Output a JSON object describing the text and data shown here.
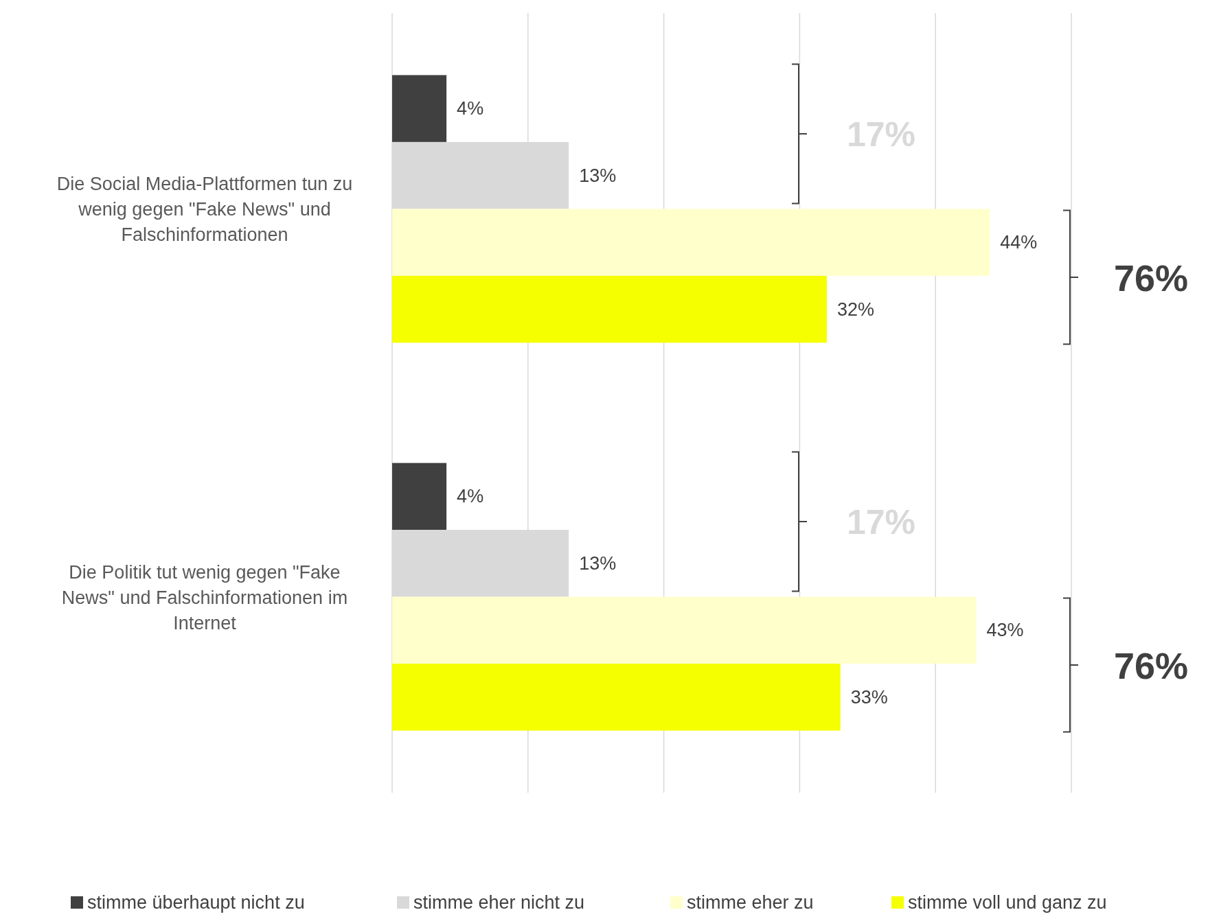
{
  "chart_data": {
    "type": "bar",
    "orientation": "horizontal",
    "categories": [
      "Die Social Media-Plattformen tun zu wenig gegen \"Fake News\" und Falschinformationen",
      "Die Politik tut wenig gegen \"Fake News\" und Falschinformationen im Internet"
    ],
    "series": [
      {
        "name": "stimme überhaupt nicht zu",
        "color": "#404040",
        "values": [
          4,
          4
        ],
        "value_labels": [
          "4%",
          "4%"
        ]
      },
      {
        "name": "stimme eher nicht zu",
        "color": "#d9d9d9",
        "values": [
          13,
          13
        ],
        "value_labels": [
          "13%",
          "13%"
        ]
      },
      {
        "name": "stimme eher zu",
        "color": "#ffffcc",
        "values": [
          44,
          43
        ],
        "value_labels": [
          "44%",
          "43%"
        ]
      },
      {
        "name": "stimme voll und ganz zu",
        "color": "#f5ff00",
        "values": [
          32,
          33
        ],
        "value_labels": [
          "32%",
          "33%"
        ]
      }
    ],
    "tick_labels": "y",
    "grid": "x",
    "legend": "bottom",
    "annotations": [
      "17%",
      "76%",
      "17%",
      "76%"
    ]
  }
}
